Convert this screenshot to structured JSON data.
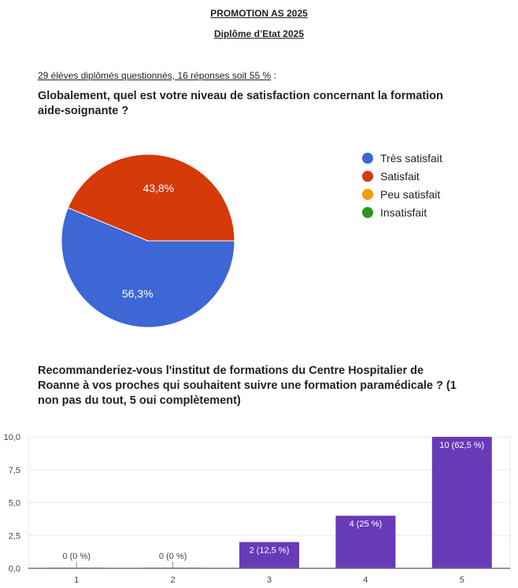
{
  "header": {
    "title": "PROMOTION AS 2025",
    "subtitle": "Diplôme d’Etat 2025"
  },
  "intro": {
    "text": "29 élèves diplômés questionnés, 16 réponses soit 55 %",
    "suffix": " :"
  },
  "chart_data": [
    {
      "type": "pie",
      "title": "Globalement, quel est votre niveau de satisfaction concernant la formation aide-soignante ?",
      "legend_position": "right",
      "slices": [
        {
          "label": "Très satisfait",
          "value": 56.3,
          "display": "56,3%",
          "color": "#3c67d4"
        },
        {
          "label": "Satisfait",
          "value": 43.8,
          "display": "43,8%",
          "color": "#d53a09"
        },
        {
          "label": "Peu satisfait",
          "value": 0,
          "display": "",
          "color": "#f59d00"
        },
        {
          "label": "Insatisfait",
          "value": 0,
          "display": "",
          "color": "#2d961d"
        }
      ]
    },
    {
      "type": "bar",
      "title": "Recommanderiez-vous l'institut de formations du Centre Hospitalier de Roanne à vos proches qui souhaitent suivre une formation paramédicale ? (1 non pas du tout, 5 oui complètement)",
      "categories": [
        "1",
        "2",
        "3",
        "4",
        "5"
      ],
      "values": [
        0,
        0,
        2,
        4,
        10
      ],
      "labels": [
        "0 (0 %)",
        "0 (0 %)",
        "2 (12,5 %)",
        "4 (25 %)",
        "10 (62,5 %)"
      ],
      "ylim": [
        0,
        10
      ],
      "yticks": [
        "0,0",
        "2,5",
        "5,0",
        "7,5",
        "10,0"
      ],
      "color": "#673ab7",
      "grid": true
    }
  ]
}
